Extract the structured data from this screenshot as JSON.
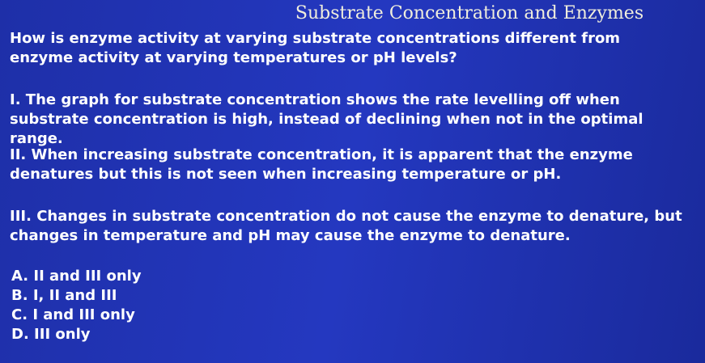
{
  "title": "Substrate Concentration and Enzymes",
  "question": "How is enzyme activity at varying substrate concentrations different from enzyme activity at varying temperatures or pH levels?",
  "statements": [
    "I. The graph for substrate concentration shows the rate levelling off when substrate concentration is high, instead of declining when not in the optimal range.",
    "II. When increasing substrate concentration, it is apparent that the enzyme denatures but this is not seen when increasing temperature or pH.",
    "III. Changes in substrate concentration do not cause the enzyme to denature, but changes in temperature and pH may cause the enzyme to denature."
  ],
  "options": [
    "A. II and III only",
    "B. I, II and III",
    "C. I and III only",
    "D. III only"
  ]
}
